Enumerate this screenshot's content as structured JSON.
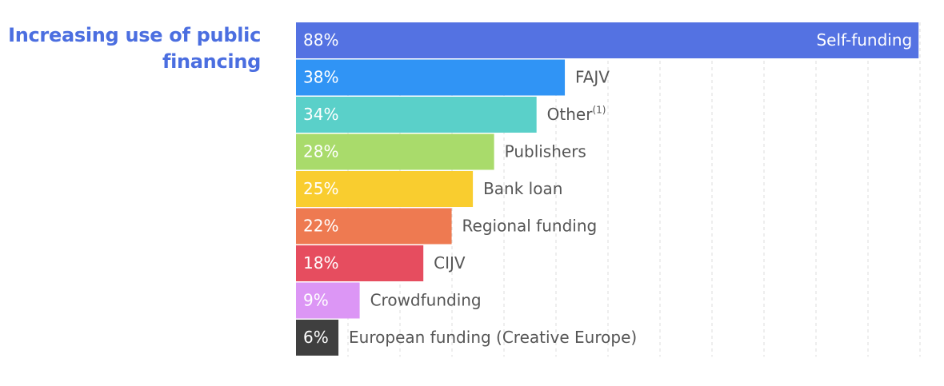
{
  "chart_data": {
    "type": "hbar",
    "title": "Increasing use of public financing",
    "categories": [
      "Self-funding",
      "FAJV",
      "Other",
      "Publishers",
      "Bank loan",
      "Regional funding",
      "CIJV",
      "Crowdfunding",
      "European funding (Creative Europe)"
    ],
    "notes": [
      null,
      null,
      "(1)",
      null,
      null,
      null,
      null,
      null,
      null
    ],
    "values": [
      88,
      38,
      34,
      28,
      25,
      22,
      18,
      9,
      6
    ],
    "value_labels": [
      "88%",
      "38%",
      "34%",
      "28%",
      "25%",
      "22%",
      "18%",
      "9%",
      "6%"
    ],
    "colors": [
      "#5472e2",
      "#3094f5",
      "#5ad0c9",
      "#a9db6b",
      "#f9cd2f",
      "#ee7a51",
      "#e64d5f",
      "#dc96f5",
      "#3f3f3f"
    ],
    "xlim": [
      0,
      88.2
    ],
    "grid_x": [
      7.35,
      14.7,
      22.05,
      29.4,
      36.75,
      44.1,
      51.45,
      58.8,
      66.15,
      73.5,
      80.85,
      88.2
    ]
  }
}
